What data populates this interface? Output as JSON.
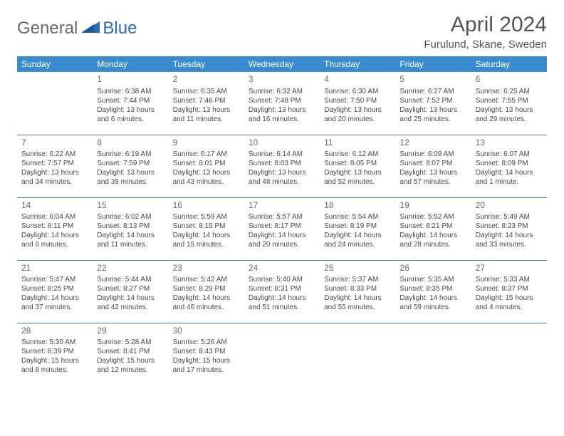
{
  "brand": {
    "part1": "General",
    "part2": "Blue"
  },
  "title": "April 2024",
  "location": "Furulund, Skane, Sweden",
  "colors": {
    "header_bg": "#3b8bd0",
    "header_text": "#ffffff",
    "rule": "#3a7ab5",
    "logo_gray": "#6a6a6a",
    "logo_blue": "#2a6cb0"
  },
  "weekdays": [
    "Sunday",
    "Monday",
    "Tuesday",
    "Wednesday",
    "Thursday",
    "Friday",
    "Saturday"
  ],
  "weeks": [
    [
      null,
      {
        "d": "1",
        "sr": "6:38 AM",
        "ss": "7:44 PM",
        "dl": "13 hours and 6 minutes."
      },
      {
        "d": "2",
        "sr": "6:35 AM",
        "ss": "7:46 PM",
        "dl": "13 hours and 11 minutes."
      },
      {
        "d": "3",
        "sr": "6:32 AM",
        "ss": "7:48 PM",
        "dl": "13 hours and 16 minutes."
      },
      {
        "d": "4",
        "sr": "6:30 AM",
        "ss": "7:50 PM",
        "dl": "13 hours and 20 minutes."
      },
      {
        "d": "5",
        "sr": "6:27 AM",
        "ss": "7:52 PM",
        "dl": "13 hours and 25 minutes."
      },
      {
        "d": "6",
        "sr": "6:25 AM",
        "ss": "7:55 PM",
        "dl": "13 hours and 29 minutes."
      }
    ],
    [
      {
        "d": "7",
        "sr": "6:22 AM",
        "ss": "7:57 PM",
        "dl": "13 hours and 34 minutes."
      },
      {
        "d": "8",
        "sr": "6:19 AM",
        "ss": "7:59 PM",
        "dl": "13 hours and 39 minutes."
      },
      {
        "d": "9",
        "sr": "6:17 AM",
        "ss": "8:01 PM",
        "dl": "13 hours and 43 minutes."
      },
      {
        "d": "10",
        "sr": "6:14 AM",
        "ss": "8:03 PM",
        "dl": "13 hours and 48 minutes."
      },
      {
        "d": "11",
        "sr": "6:12 AM",
        "ss": "8:05 PM",
        "dl": "13 hours and 52 minutes."
      },
      {
        "d": "12",
        "sr": "6:09 AM",
        "ss": "8:07 PM",
        "dl": "13 hours and 57 minutes."
      },
      {
        "d": "13",
        "sr": "6:07 AM",
        "ss": "8:09 PM",
        "dl": "14 hours and 1 minute."
      }
    ],
    [
      {
        "d": "14",
        "sr": "6:04 AM",
        "ss": "8:11 PM",
        "dl": "14 hours and 6 minutes."
      },
      {
        "d": "15",
        "sr": "6:02 AM",
        "ss": "8:13 PM",
        "dl": "14 hours and 11 minutes."
      },
      {
        "d": "16",
        "sr": "5:59 AM",
        "ss": "8:15 PM",
        "dl": "14 hours and 15 minutes."
      },
      {
        "d": "17",
        "sr": "5:57 AM",
        "ss": "8:17 PM",
        "dl": "14 hours and 20 minutes."
      },
      {
        "d": "18",
        "sr": "5:54 AM",
        "ss": "8:19 PM",
        "dl": "14 hours and 24 minutes."
      },
      {
        "d": "19",
        "sr": "5:52 AM",
        "ss": "8:21 PM",
        "dl": "14 hours and 28 minutes."
      },
      {
        "d": "20",
        "sr": "5:49 AM",
        "ss": "8:23 PM",
        "dl": "14 hours and 33 minutes."
      }
    ],
    [
      {
        "d": "21",
        "sr": "5:47 AM",
        "ss": "8:25 PM",
        "dl": "14 hours and 37 minutes."
      },
      {
        "d": "22",
        "sr": "5:44 AM",
        "ss": "8:27 PM",
        "dl": "14 hours and 42 minutes."
      },
      {
        "d": "23",
        "sr": "5:42 AM",
        "ss": "8:29 PM",
        "dl": "14 hours and 46 minutes."
      },
      {
        "d": "24",
        "sr": "5:40 AM",
        "ss": "8:31 PM",
        "dl": "14 hours and 51 minutes."
      },
      {
        "d": "25",
        "sr": "5:37 AM",
        "ss": "8:33 PM",
        "dl": "14 hours and 55 minutes."
      },
      {
        "d": "26",
        "sr": "5:35 AM",
        "ss": "8:35 PM",
        "dl": "14 hours and 59 minutes."
      },
      {
        "d": "27",
        "sr": "5:33 AM",
        "ss": "8:37 PM",
        "dl": "15 hours and 4 minutes."
      }
    ],
    [
      {
        "d": "28",
        "sr": "5:30 AM",
        "ss": "8:39 PM",
        "dl": "15 hours and 8 minutes."
      },
      {
        "d": "29",
        "sr": "5:28 AM",
        "ss": "8:41 PM",
        "dl": "15 hours and 12 minutes."
      },
      {
        "d": "30",
        "sr": "5:26 AM",
        "ss": "8:43 PM",
        "dl": "15 hours and 17 minutes."
      },
      null,
      null,
      null,
      null
    ]
  ],
  "labels": {
    "sunrise": "Sunrise:",
    "sunset": "Sunset:",
    "daylight": "Daylight:"
  }
}
